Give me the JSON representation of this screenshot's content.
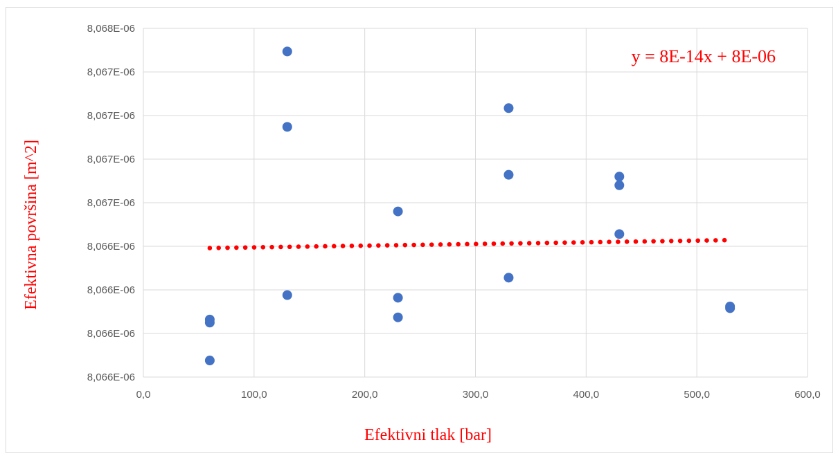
{
  "chart_data": {
    "type": "scatter",
    "xlabel": "Efektivni tlak [bar]",
    "ylabel": "Efektivna površina [m^2]",
    "xlim": [
      0,
      600
    ],
    "ylim": [
      0,
      8
    ],
    "x_ticks": [
      "0,0",
      "100,0",
      "200,0",
      "300,0",
      "400,0",
      "500,0",
      "600,0"
    ],
    "y_ticks": [
      "8,066E-06",
      "8,066E-06",
      "8,066E-06",
      "8,066E-06",
      "8,067E-06",
      "8,067E-06",
      "8,067E-06",
      "8,067E-06",
      "8,068E-06"
    ],
    "grid": true,
    "series": [
      {
        "color": "#4472c4",
        "points": [
          {
            "x": 60,
            "y": 0.38
          },
          {
            "x": 60,
            "y": 1.25
          },
          {
            "x": 60,
            "y": 1.32
          },
          {
            "x": 130,
            "y": 1.88
          },
          {
            "x": 130,
            "y": 5.74
          },
          {
            "x": 130,
            "y": 7.47
          },
          {
            "x": 230,
            "y": 1.37
          },
          {
            "x": 230,
            "y": 1.82
          },
          {
            "x": 230,
            "y": 3.8
          },
          {
            "x": 330,
            "y": 2.28
          },
          {
            "x": 330,
            "y": 4.64
          },
          {
            "x": 330,
            "y": 6.17
          },
          {
            "x": 430,
            "y": 3.28
          },
          {
            "x": 430,
            "y": 4.4
          },
          {
            "x": 430,
            "y": 4.6
          },
          {
            "x": 530,
            "y": 1.58
          },
          {
            "x": 530,
            "y": 1.62
          }
        ]
      }
    ],
    "trendline": {
      "style": "dotted",
      "color": "#ff0000",
      "x_start": 60,
      "y_start": 2.96,
      "x_end": 525,
      "y_end": 3.14,
      "equation": "y = 8E-14x + 8E-06"
    }
  }
}
